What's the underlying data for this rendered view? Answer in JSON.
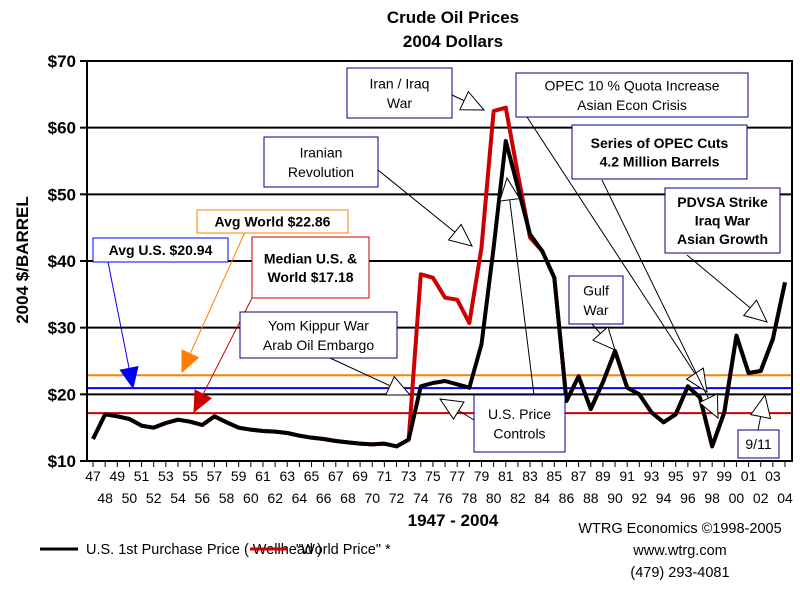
{
  "chart_data": {
    "type": "line",
    "title": "Crude Oil Prices",
    "subtitle": "2004 Dollars",
    "xlabel": "1947 - 2004",
    "ylabel": "2004 $/BARREL",
    "xlim": [
      1947,
      2004
    ],
    "ylim": [
      10,
      70
    ],
    "yticks": [
      10,
      20,
      30,
      40,
      50,
      60,
      70
    ],
    "ytick_labels": [
      "$10",
      "$20",
      "$30",
      "$40",
      "$50",
      "$60",
      "$70"
    ],
    "xtick_labels": [
      "47",
      "48",
      "49",
      "50",
      "51",
      "52",
      "53",
      "54",
      "55",
      "56",
      "57",
      "58",
      "59",
      "60",
      "61",
      "62",
      "63",
      "64",
      "65",
      "66",
      "67",
      "68",
      "69",
      "70",
      "71",
      "72",
      "73",
      "74",
      "75",
      "76",
      "77",
      "78",
      "79",
      "80",
      "81",
      "82",
      "83",
      "84",
      "85",
      "86",
      "87",
      "88",
      "89",
      "90",
      "91",
      "92",
      "93",
      "94",
      "95",
      "96",
      "97",
      "98",
      "99",
      "00",
      "01",
      "02",
      "03",
      "04"
    ],
    "grid": "horizontal",
    "legend_placement": "bottom-left",
    "x": [
      1947,
      1948,
      1949,
      1950,
      1951,
      1952,
      1953,
      1954,
      1955,
      1956,
      1957,
      1958,
      1959,
      1960,
      1961,
      1962,
      1963,
      1964,
      1965,
      1966,
      1967,
      1968,
      1969,
      1970,
      1971,
      1972,
      1973,
      1974,
      1975,
      1976,
      1977,
      1978,
      1979,
      1980,
      1981,
      1982,
      1983,
      1984,
      1985,
      1986,
      1987,
      1988,
      1989,
      1990,
      1991,
      1992,
      1993,
      1994,
      1995,
      1996,
      1997,
      1998,
      1999,
      2000,
      2001,
      2002,
      2003,
      2004
    ],
    "series": [
      {
        "name": "U.S. 1st Purchase Price ( Wellhead )",
        "color": "#000000",
        "values": [
          13.3,
          17.0,
          16.7,
          16.3,
          15.3,
          15.0,
          15.7,
          16.2,
          15.9,
          15.4,
          16.7,
          15.8,
          15.0,
          14.7,
          14.5,
          14.4,
          14.2,
          13.8,
          13.5,
          13.3,
          13.0,
          12.8,
          12.6,
          12.5,
          12.6,
          12.2,
          13.2,
          21.2,
          21.7,
          22.0,
          21.5,
          21.0,
          27.5,
          42.0,
          58.0,
          51.0,
          44.0,
          41.5,
          37.5,
          19.0,
          22.7,
          17.8,
          21.8,
          26.5,
          21.0,
          20.0,
          17.3,
          15.8,
          17.0,
          21.2,
          19.5,
          12.2,
          17.3,
          28.8,
          23.2,
          23.5,
          28.3,
          36.8
        ]
      },
      {
        "name": "\"World Price\" *",
        "color": "#cc0000",
        "values": [
          13.3,
          17.0,
          16.7,
          16.3,
          15.3,
          15.0,
          15.7,
          16.2,
          15.9,
          15.4,
          16.7,
          15.8,
          15.0,
          14.7,
          14.5,
          14.4,
          14.2,
          13.8,
          13.5,
          13.3,
          13.0,
          12.8,
          12.6,
          12.5,
          12.6,
          12.2,
          13.2,
          38.0,
          37.5,
          34.5,
          34.2,
          30.7,
          42.0,
          62.5,
          63.0,
          53.0,
          43.5,
          41.5,
          37.5,
          19.0,
          22.7,
          17.8,
          21.8,
          26.5,
          21.0,
          20.0,
          17.3,
          15.8,
          17.0,
          21.2,
          19.5,
          12.2,
          17.3,
          28.8,
          23.2,
          23.5,
          28.3,
          36.8
        ]
      }
    ],
    "reference_lines": [
      {
        "label": "Avg World $22.86",
        "value": 22.86,
        "color": "#ff8000"
      },
      {
        "label": "Avg U.S. $20.94",
        "value": 20.94,
        "color": "#0000ff"
      },
      {
        "label": "Median U.S. & World  $17.18",
        "label_lines": [
          "Median U.S. &",
          "World  $17.18"
        ],
        "value": 17.18,
        "color": "#cc0000"
      }
    ],
    "annotations": [
      {
        "lines": [
          "Iran / Iraq",
          "War"
        ]
      },
      {
        "lines": [
          "OPEC 10 % Quota Increase",
          "Asian Econ Crisis"
        ]
      },
      {
        "lines": [
          "Series of OPEC Cuts",
          "4.2 Million Barrels"
        ]
      },
      {
        "lines": [
          "Iranian",
          "Revolution"
        ]
      },
      {
        "lines": [
          "PDVSA Strike",
          "Iraq War",
          "Asian Growth"
        ]
      },
      {
        "lines": [
          "Yom Kippur War",
          "Arab Oil Embargo"
        ]
      },
      {
        "lines": [
          "Gulf",
          "War"
        ]
      },
      {
        "lines": [
          "U.S. Price",
          "Controls"
        ]
      },
      {
        "lines": [
          "9/11"
        ]
      }
    ]
  },
  "credits": {
    "line1": "WTRG Economics  ©1998-2005",
    "line2": "www.wtrg.com",
    "line3": "(479) 293-4081"
  }
}
